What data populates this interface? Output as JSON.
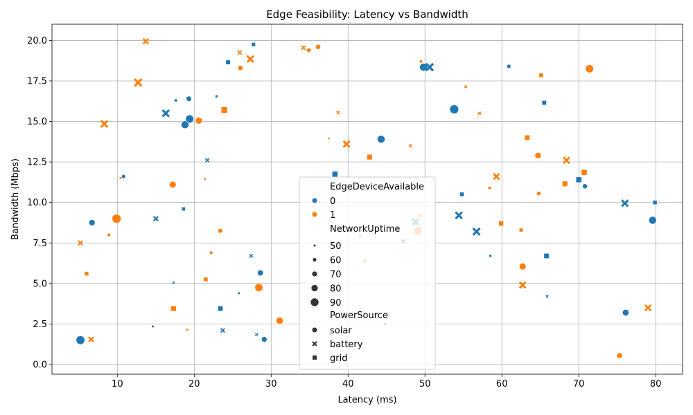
{
  "chart_data": {
    "type": "scatter",
    "title": "Edge Feasibility: Latency vs Bandwidth",
    "xlabel": "Latency (ms)",
    "ylabel": "Bandwidth (Mbps)",
    "xlim": [
      1.5,
      83.5
    ],
    "ylim": [
      -0.6,
      21.0
    ],
    "xticks": [
      10,
      20,
      30,
      40,
      50,
      60,
      70,
      80
    ],
    "yticks": [
      "0.0",
      "2.5",
      "5.0",
      "7.5",
      "10.0",
      "12.5",
      "15.0",
      "17.5",
      "20.0"
    ],
    "grid": true,
    "legend_placement": "lower-center",
    "colors": {
      "0": "#1f77b4",
      "1": "#ff7f0e"
    },
    "legend": {
      "hue_title": "EdgeDeviceAvailable",
      "hue_entries": [
        "0",
        "1"
      ],
      "size_title": "NetworkUptime",
      "size_entries": [
        "50",
        "60",
        "70",
        "80",
        "90"
      ],
      "style_title": "PowerSource",
      "style_entries": [
        "solar",
        "battery",
        "grid"
      ]
    },
    "points": [
      {
        "x": 5.2,
        "y": 1.5,
        "edge": 0,
        "uptime": 92,
        "power": "solar"
      },
      {
        "x": 6.7,
        "y": 8.75,
        "edge": 0,
        "uptime": 76,
        "power": "solar"
      },
      {
        "x": 10.8,
        "y": 11.6,
        "edge": 0,
        "uptime": 62,
        "power": "solar"
      },
      {
        "x": 18.8,
        "y": 14.8,
        "edge": 0,
        "uptime": 86,
        "power": "solar"
      },
      {
        "x": 19.3,
        "y": 16.4,
        "edge": 0,
        "uptime": 70,
        "power": "solar"
      },
      {
        "x": 19.4,
        "y": 15.15,
        "edge": 0,
        "uptime": 88,
        "power": "solar"
      },
      {
        "x": 28.6,
        "y": 5.65,
        "edge": 0,
        "uptime": 74,
        "power": "solar"
      },
      {
        "x": 29.1,
        "y": 1.55,
        "edge": 0,
        "uptime": 72,
        "power": "solar"
      },
      {
        "x": 44.3,
        "y": 13.9,
        "edge": 0,
        "uptime": 86,
        "power": "solar"
      },
      {
        "x": 44.8,
        "y": 2.5,
        "edge": 0,
        "uptime": 55,
        "power": "solar"
      },
      {
        "x": 49.8,
        "y": 18.35,
        "edge": 0,
        "uptime": 86,
        "power": "solar"
      },
      {
        "x": 53.8,
        "y": 15.75,
        "edge": 0,
        "uptime": 94,
        "power": "solar"
      },
      {
        "x": 58.5,
        "y": 6.7,
        "edge": 0,
        "uptime": 54,
        "power": "solar"
      },
      {
        "x": 60.9,
        "y": 18.4,
        "edge": 0,
        "uptime": 62,
        "power": "solar"
      },
      {
        "x": 70.8,
        "y": 11.0,
        "edge": 0,
        "uptime": 68,
        "power": "solar"
      },
      {
        "x": 76.1,
        "y": 3.2,
        "edge": 0,
        "uptime": 78,
        "power": "solar"
      },
      {
        "x": 79.6,
        "y": 8.9,
        "edge": 0,
        "uptime": 86,
        "power": "solar"
      },
      {
        "x": 15.0,
        "y": 9.0,
        "edge": 0,
        "uptime": 70,
        "power": "battery"
      },
      {
        "x": 16.3,
        "y": 15.5,
        "edge": 0,
        "uptime": 86,
        "power": "battery"
      },
      {
        "x": 17.3,
        "y": 5.05,
        "edge": 0,
        "uptime": 50,
        "power": "battery"
      },
      {
        "x": 21.7,
        "y": 12.6,
        "edge": 0,
        "uptime": 64,
        "power": "battery"
      },
      {
        "x": 23.7,
        "y": 2.1,
        "edge": 0,
        "uptime": 66,
        "power": "battery"
      },
      {
        "x": 27.4,
        "y": 6.7,
        "edge": 0,
        "uptime": 62,
        "power": "battery"
      },
      {
        "x": 28.1,
        "y": 1.85,
        "edge": 0,
        "uptime": 56,
        "power": "battery"
      },
      {
        "x": 47.2,
        "y": 7.6,
        "edge": 0,
        "uptime": 66,
        "power": "battery"
      },
      {
        "x": 48.8,
        "y": 8.8,
        "edge": 0,
        "uptime": 84,
        "power": "battery"
      },
      {
        "x": 50.6,
        "y": 18.35,
        "edge": 0,
        "uptime": 90,
        "power": "battery"
      },
      {
        "x": 54.4,
        "y": 9.2,
        "edge": 0,
        "uptime": 86,
        "power": "battery"
      },
      {
        "x": 56.7,
        "y": 8.2,
        "edge": 0,
        "uptime": 88,
        "power": "battery"
      },
      {
        "x": 65.9,
        "y": 4.2,
        "edge": 0,
        "uptime": 52,
        "power": "battery"
      },
      {
        "x": 76.0,
        "y": 9.95,
        "edge": 0,
        "uptime": 84,
        "power": "battery"
      },
      {
        "x": 14.6,
        "y": 2.35,
        "edge": 0,
        "uptime": 52,
        "power": "grid"
      },
      {
        "x": 17.6,
        "y": 16.3,
        "edge": 0,
        "uptime": 56,
        "power": "grid"
      },
      {
        "x": 18.6,
        "y": 9.6,
        "edge": 0,
        "uptime": 62,
        "power": "grid"
      },
      {
        "x": 22.9,
        "y": 16.55,
        "edge": 0,
        "uptime": 54,
        "power": "grid"
      },
      {
        "x": 23.4,
        "y": 3.45,
        "edge": 0,
        "uptime": 72,
        "power": "grid"
      },
      {
        "x": 24.4,
        "y": 18.65,
        "edge": 0,
        "uptime": 68,
        "power": "grid"
      },
      {
        "x": 25.8,
        "y": 4.4,
        "edge": 0,
        "uptime": 52,
        "power": "grid"
      },
      {
        "x": 27.7,
        "y": 19.75,
        "edge": 0,
        "uptime": 64,
        "power": "grid"
      },
      {
        "x": 38.3,
        "y": 11.75,
        "edge": 0,
        "uptime": 76,
        "power": "grid"
      },
      {
        "x": 54.8,
        "y": 10.5,
        "edge": 0,
        "uptime": 66,
        "power": "grid"
      },
      {
        "x": 65.5,
        "y": 16.15,
        "edge": 0,
        "uptime": 68,
        "power": "grid"
      },
      {
        "x": 65.8,
        "y": 6.7,
        "edge": 0,
        "uptime": 72,
        "power": "grid"
      },
      {
        "x": 70.0,
        "y": 11.4,
        "edge": 0,
        "uptime": 76,
        "power": "grid"
      },
      {
        "x": 79.9,
        "y": 10.0,
        "edge": 0,
        "uptime": 66,
        "power": "grid"
      },
      {
        "x": 6.0,
        "y": 5.6,
        "edge": 1,
        "uptime": 66,
        "power": "solar"
      },
      {
        "x": 8.9,
        "y": 8.0,
        "edge": 1,
        "uptime": 58,
        "power": "solar"
      },
      {
        "x": 9.9,
        "y": 9.0,
        "edge": 1,
        "uptime": 94,
        "power": "solar"
      },
      {
        "x": 10.4,
        "y": 11.5,
        "edge": 1,
        "uptime": 52,
        "power": "solar"
      },
      {
        "x": 17.2,
        "y": 11.1,
        "edge": 1,
        "uptime": 80,
        "power": "solar"
      },
      {
        "x": 20.6,
        "y": 15.05,
        "edge": 1,
        "uptime": 80,
        "power": "solar"
      },
      {
        "x": 23.4,
        "y": 8.25,
        "edge": 1,
        "uptime": 66,
        "power": "solar"
      },
      {
        "x": 26.0,
        "y": 18.3,
        "edge": 1,
        "uptime": 68,
        "power": "solar"
      },
      {
        "x": 28.4,
        "y": 4.75,
        "edge": 1,
        "uptime": 88,
        "power": "solar"
      },
      {
        "x": 31.1,
        "y": 2.7,
        "edge": 1,
        "uptime": 82,
        "power": "solar"
      },
      {
        "x": 34.9,
        "y": 19.4,
        "edge": 1,
        "uptime": 64,
        "power": "solar"
      },
      {
        "x": 36.1,
        "y": 19.6,
        "edge": 1,
        "uptime": 68,
        "power": "solar"
      },
      {
        "x": 41.6,
        "y": 7.9,
        "edge": 1,
        "uptime": 56,
        "power": "solar"
      },
      {
        "x": 42.2,
        "y": 6.4,
        "edge": 1,
        "uptime": 60,
        "power": "solar"
      },
      {
        "x": 49.1,
        "y": 8.25,
        "edge": 1,
        "uptime": 88,
        "power": "solar"
      },
      {
        "x": 49.4,
        "y": 9.2,
        "edge": 1,
        "uptime": 60,
        "power": "solar"
      },
      {
        "x": 49.5,
        "y": 18.7,
        "edge": 1,
        "uptime": 56,
        "power": "solar"
      },
      {
        "x": 58.4,
        "y": 10.9,
        "edge": 1,
        "uptime": 56,
        "power": "solar"
      },
      {
        "x": 62.7,
        "y": 6.05,
        "edge": 1,
        "uptime": 80,
        "power": "solar"
      },
      {
        "x": 64.7,
        "y": 12.9,
        "edge": 1,
        "uptime": 76,
        "power": "solar"
      },
      {
        "x": 71.4,
        "y": 18.25,
        "edge": 1,
        "uptime": 88,
        "power": "solar"
      },
      {
        "x": 75.3,
        "y": 0.55,
        "edge": 1,
        "uptime": 72,
        "power": "solar"
      },
      {
        "x": 5.2,
        "y": 7.5,
        "edge": 1,
        "uptime": 70,
        "power": "battery"
      },
      {
        "x": 6.6,
        "y": 1.55,
        "edge": 1,
        "uptime": 74,
        "power": "battery"
      },
      {
        "x": 8.3,
        "y": 14.85,
        "edge": 1,
        "uptime": 86,
        "power": "battery"
      },
      {
        "x": 12.7,
        "y": 17.4,
        "edge": 1,
        "uptime": 90,
        "power": "battery"
      },
      {
        "x": 13.7,
        "y": 19.95,
        "edge": 1,
        "uptime": 76,
        "power": "battery"
      },
      {
        "x": 25.9,
        "y": 19.25,
        "edge": 1,
        "uptime": 66,
        "power": "battery"
      },
      {
        "x": 27.3,
        "y": 18.85,
        "edge": 1,
        "uptime": 84,
        "power": "battery"
      },
      {
        "x": 34.2,
        "y": 19.55,
        "edge": 1,
        "uptime": 66,
        "power": "battery"
      },
      {
        "x": 38.7,
        "y": 15.55,
        "edge": 1,
        "uptime": 60,
        "power": "battery"
      },
      {
        "x": 39.8,
        "y": 13.6,
        "edge": 1,
        "uptime": 84,
        "power": "battery"
      },
      {
        "x": 48.1,
        "y": 13.5,
        "edge": 1,
        "uptime": 58,
        "power": "battery"
      },
      {
        "x": 55.3,
        "y": 17.15,
        "edge": 1,
        "uptime": 54,
        "power": "battery"
      },
      {
        "x": 57.1,
        "y": 15.5,
        "edge": 1,
        "uptime": 58,
        "power": "battery"
      },
      {
        "x": 59.3,
        "y": 11.6,
        "edge": 1,
        "uptime": 80,
        "power": "battery"
      },
      {
        "x": 62.7,
        "y": 4.9,
        "edge": 1,
        "uptime": 82,
        "power": "battery"
      },
      {
        "x": 68.4,
        "y": 12.6,
        "edge": 1,
        "uptime": 82,
        "power": "battery"
      },
      {
        "x": 79.0,
        "y": 3.5,
        "edge": 1,
        "uptime": 80,
        "power": "battery"
      },
      {
        "x": 17.3,
        "y": 3.45,
        "edge": 1,
        "uptime": 74,
        "power": "grid"
      },
      {
        "x": 19.1,
        "y": 2.15,
        "edge": 1,
        "uptime": 52,
        "power": "grid"
      },
      {
        "x": 21.4,
        "y": 11.45,
        "edge": 1,
        "uptime": 52,
        "power": "grid"
      },
      {
        "x": 21.5,
        "y": 5.25,
        "edge": 1,
        "uptime": 66,
        "power": "grid"
      },
      {
        "x": 22.2,
        "y": 6.9,
        "edge": 1,
        "uptime": 56,
        "power": "grid"
      },
      {
        "x": 23.9,
        "y": 15.7,
        "edge": 1,
        "uptime": 80,
        "power": "grid"
      },
      {
        "x": 37.5,
        "y": 13.95,
        "edge": 1,
        "uptime": 50,
        "power": "grid"
      },
      {
        "x": 42.8,
        "y": 12.8,
        "edge": 1,
        "uptime": 74,
        "power": "grid"
      },
      {
        "x": 59.9,
        "y": 8.7,
        "edge": 1,
        "uptime": 70,
        "power": "grid"
      },
      {
        "x": 62.5,
        "y": 8.3,
        "edge": 1,
        "uptime": 62,
        "power": "grid"
      },
      {
        "x": 63.3,
        "y": 14.0,
        "edge": 1,
        "uptime": 72,
        "power": "grid"
      },
      {
        "x": 64.8,
        "y": 10.55,
        "edge": 1,
        "uptime": 62,
        "power": "grid"
      },
      {
        "x": 65.1,
        "y": 17.85,
        "edge": 1,
        "uptime": 66,
        "power": "grid"
      },
      {
        "x": 68.2,
        "y": 11.15,
        "edge": 1,
        "uptime": 74,
        "power": "grid"
      },
      {
        "x": 70.7,
        "y": 11.85,
        "edge": 1,
        "uptime": 76,
        "power": "grid"
      }
    ]
  }
}
